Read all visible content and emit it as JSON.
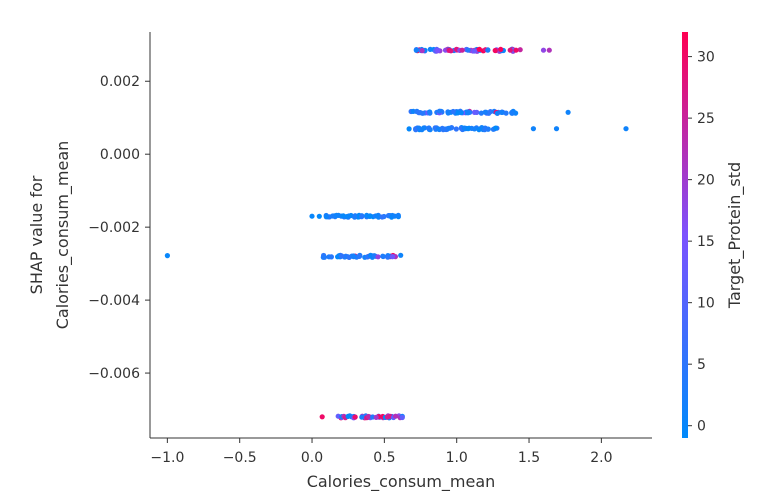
{
  "chart_data": {
    "type": "scatter",
    "xlabel": "Calories_consum_mean",
    "ylabel_lines": [
      "SHAP value for",
      "Calories_consum_mean"
    ],
    "colorbar_label": "Target_Protein_std",
    "xlim": [
      -1.12,
      2.35
    ],
    "ylim": [
      -0.00778,
      0.00335
    ],
    "xticks": [
      -1.0,
      -0.5,
      0.0,
      0.5,
      1.0,
      1.5,
      2.0
    ],
    "xtick_labels": [
      "−1.0",
      "−0.5",
      "0.0",
      "0.5",
      "1.0",
      "1.5",
      "2.0"
    ],
    "yticks": [
      0.002,
      0.0,
      -0.002,
      -0.004,
      -0.006
    ],
    "ytick_labels": [
      "0.002",
      "0.000",
      "−0.002",
      "−0.004",
      "−0.006"
    ],
    "colorbar_range": [
      -1,
      32
    ],
    "colorbar_ticks": [
      0,
      5,
      10,
      15,
      20,
      25,
      30
    ],
    "colorbar_tick_labels": [
      "0",
      "5",
      "10",
      "15",
      "20",
      "25",
      "30"
    ],
    "colormap": [
      "#008afb",
      "#7c52fe",
      "#ff0052"
    ],
    "clusters": [
      {
        "y": 0.00285,
        "xmin": 0.65,
        "xmax": 1.45,
        "n": 60,
        "color_mix": 0.7
      },
      {
        "y": 0.00115,
        "xmin": 0.65,
        "xmax": 1.45,
        "n": 60,
        "color_mix": 0.2
      },
      {
        "y": 0.0007,
        "xmin": 0.65,
        "xmax": 1.3,
        "n": 55,
        "color_mix": 0.0
      },
      {
        "y": -0.0017,
        "xmin": 0.05,
        "xmax": 0.65,
        "n": 45,
        "color_mix": 0.0
      },
      {
        "y": -0.0028,
        "xmin": 0.05,
        "xmax": 0.65,
        "n": 45,
        "color_mix": 0.15
      },
      {
        "y": -0.0072,
        "xmin": 0.15,
        "xmax": 0.65,
        "n": 45,
        "color_mix": 0.75
      }
    ],
    "outliers": [
      {
        "x": -1.0,
        "y": -0.00278,
        "c": 0
      },
      {
        "x": 0.0,
        "y": -0.0017,
        "c": 0
      },
      {
        "x": 0.07,
        "y": -0.0072,
        "c": 30
      },
      {
        "x": 1.37,
        "y": 0.00285,
        "c": 28
      },
      {
        "x": 1.41,
        "y": 0.00285,
        "c": 30
      },
      {
        "x": 1.6,
        "y": 0.00285,
        "c": 18
      },
      {
        "x": 1.64,
        "y": 0.00285,
        "c": 22
      },
      {
        "x": 1.53,
        "y": 0.0007,
        "c": 1
      },
      {
        "x": 1.69,
        "y": 0.0007,
        "c": 1
      },
      {
        "x": 1.77,
        "y": 0.00115,
        "c": 1
      },
      {
        "x": 2.17,
        "y": 0.0007,
        "c": 1
      }
    ]
  }
}
